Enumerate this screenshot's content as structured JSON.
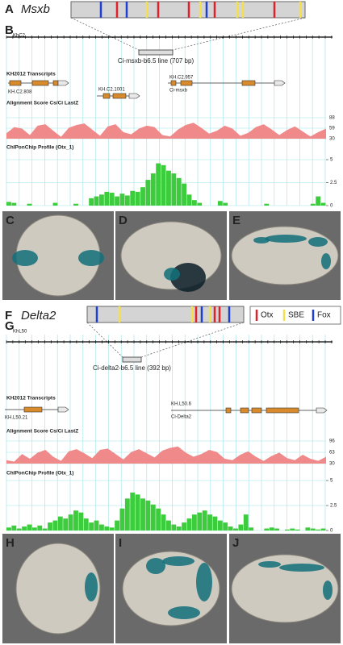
{
  "panel_a": {
    "letter": "A",
    "gene": "Msxb"
  },
  "panel_b": {
    "letter": "B",
    "scaffold": "KhC2",
    "construct": "Ci-msxb-b6.5 line (707 bp)",
    "transcripts_title": "KH2012 Transcripts",
    "transcripts": [
      "KH.C2.808",
      "KH.C2.1001",
      "KH.C2.957"
    ],
    "gene_label": "Ci-msxb",
    "alignment_title": "Alignment Score Cs/Ci LastZ",
    "alignment_ticks": [
      88,
      59,
      30
    ],
    "alignment_lim": [
      30,
      88
    ],
    "alignment": [
      45,
      62,
      58,
      40,
      66,
      70,
      52,
      35,
      60,
      68,
      72,
      55,
      38,
      64,
      70,
      48,
      42,
      58,
      66,
      62,
      40,
      36,
      55,
      68,
      74,
      60,
      44,
      52,
      66,
      58,
      38,
      46,
      62,
      70,
      56,
      40,
      54,
      64,
      50,
      36,
      48,
      58
    ],
    "chip_title": "ChIPonChip Profile (Otx_1)",
    "chip_ticks": [
      5,
      2.5,
      0
    ],
    "chip_lim": [
      0,
      5
    ],
    "chip": [
      0.4,
      0.3,
      0,
      0,
      0.2,
      0,
      0,
      0,
      0,
      0.3,
      0,
      0,
      0,
      0.2,
      0,
      0,
      0.8,
      1,
      1.2,
      1.5,
      1.4,
      1.0,
      1.3,
      1.1,
      1.6,
      1.5,
      2.0,
      2.8,
      3.5,
      4.6,
      4.4,
      3.8,
      3.5,
      3.0,
      2.4,
      1.2,
      0.6,
      0.3,
      0,
      0,
      0,
      0.5,
      0.3,
      0,
      0,
      0,
      0,
      0,
      0,
      0,
      0.2,
      0,
      0,
      0,
      0,
      0,
      0,
      0,
      0,
      0.2,
      1.0,
      0.3
    ]
  },
  "images_top": [
    "C",
    "D",
    "E"
  ],
  "panel_f": {
    "letter": "F",
    "gene": "Delta2"
  },
  "legend": [
    "Otx",
    "SBE",
    "Fox"
  ],
  "panel_g": {
    "letter": "G",
    "scaffold": "KhL50",
    "construct": "Ci-delta2-b6.5 line (392 bp)",
    "transcripts_title": "KH2012 Transcripts",
    "transcripts": [
      "KH.L50.21",
      "KH.L50.6"
    ],
    "gene_label": "Ci-Delta2",
    "alignment_title": "Alignment Score Cs/Ci LastZ",
    "alignment_ticks": [
      96,
      63,
      30
    ],
    "alignment_lim": [
      30,
      96
    ],
    "alignment": [
      40,
      36,
      58,
      44,
      62,
      70,
      50,
      38,
      66,
      72,
      60,
      46,
      70,
      74,
      58,
      42,
      64,
      72,
      60,
      48,
      68,
      76,
      80,
      62,
      50,
      58,
      70,
      64,
      44,
      40,
      56,
      66,
      50,
      38,
      52,
      62,
      46,
      40,
      56,
      44,
      38,
      50
    ],
    "chip_title": "ChIPonChip Profile (Otx_1)",
    "chip_ticks": [
      5,
      2.5,
      0
    ],
    "chip_lim": [
      0,
      5
    ],
    "chip": [
      0.3,
      0.5,
      0.2,
      0.4,
      0.6,
      0.3,
      0.5,
      0.2,
      0.8,
      1.0,
      1.4,
      1.2,
      1.6,
      2.0,
      1.8,
      1.2,
      0.8,
      1.0,
      0.6,
      0.4,
      0.3,
      1.0,
      2.2,
      3.2,
      3.8,
      3.6,
      3.2,
      3.0,
      2.6,
      2.2,
      1.6,
      1.0,
      0.6,
      0.4,
      0.8,
      1.2,
      1.6,
      1.8,
      2.0,
      1.6,
      1.4,
      1.0,
      0.8,
      0.4,
      0.2,
      0.6,
      1.6,
      0.3,
      0,
      0,
      0.2,
      0.3,
      0.2,
      0,
      0.1,
      0.2,
      0.1,
      0,
      0.3,
      0.2,
      0.1,
      0.2
    ]
  },
  "images_bottom": [
    "H",
    "I",
    "J"
  ]
}
